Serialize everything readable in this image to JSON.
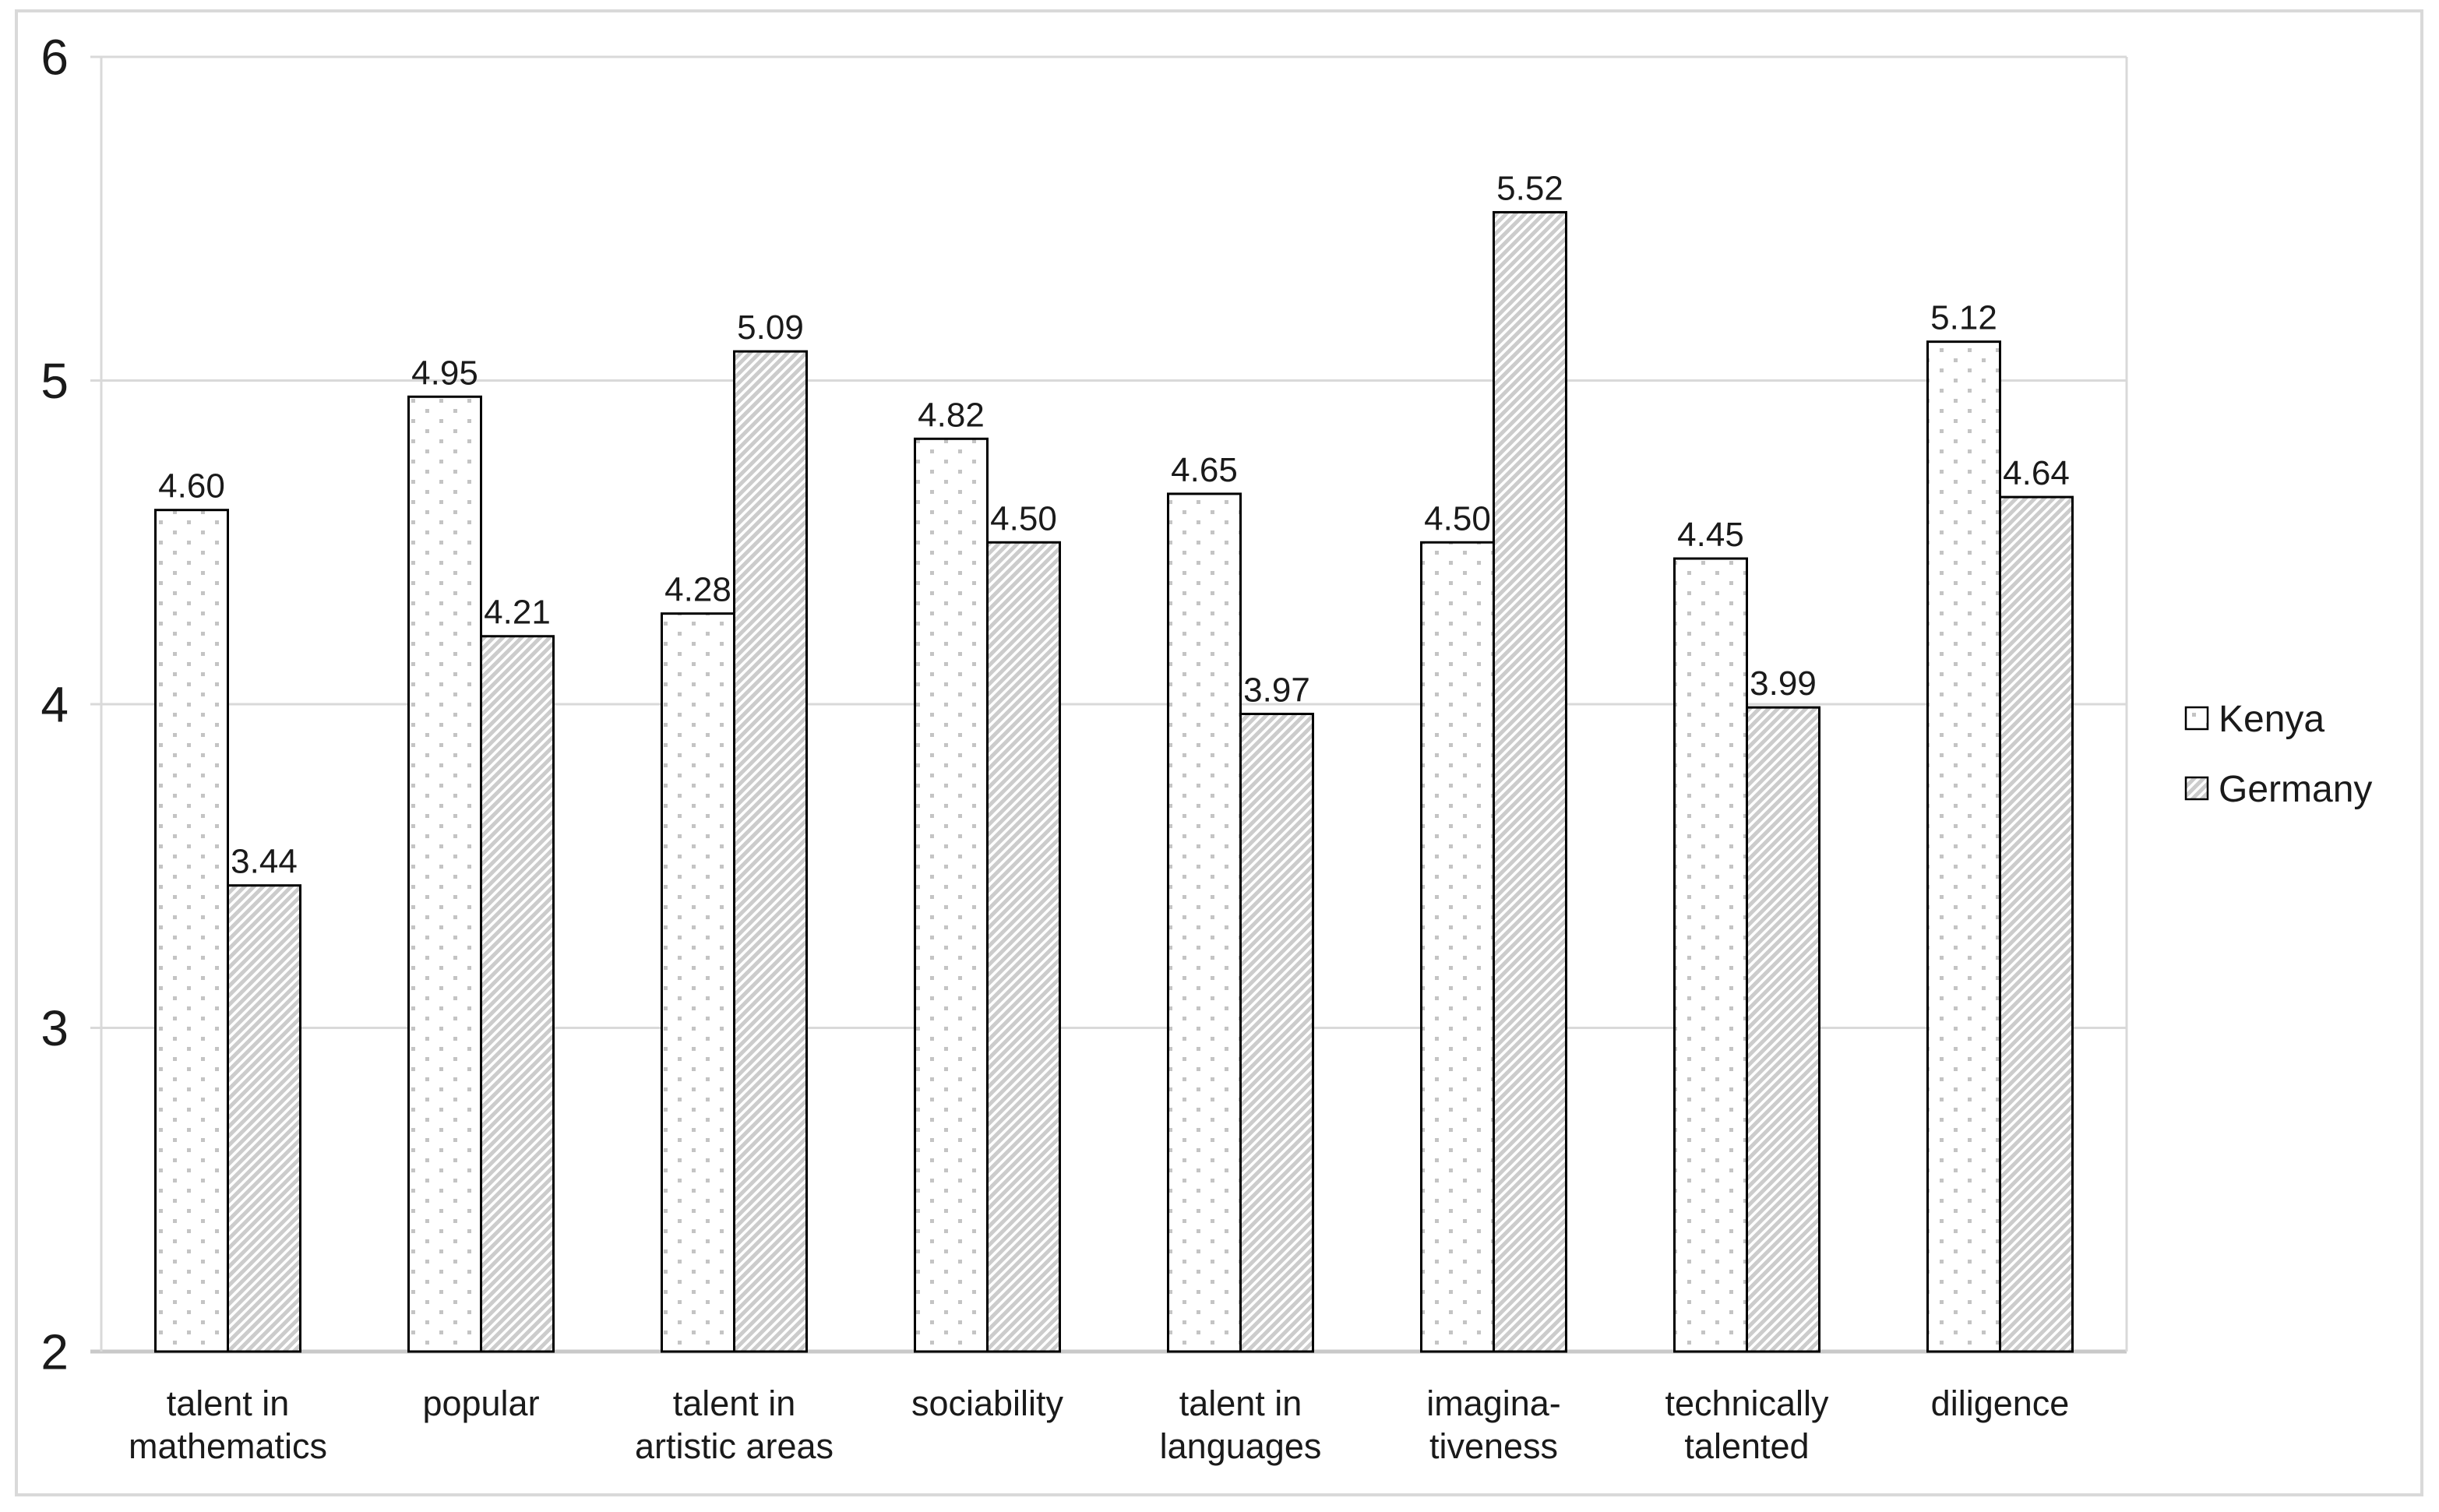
{
  "chart_data": {
    "type": "bar",
    "title": "",
    "categories": [
      "talent in\nmathematics",
      "popular",
      "talent in\nartistic areas",
      "sociability",
      "talent in\nlanguages",
      "imagina-\ntiveness",
      "technically\ntalented",
      "diligence"
    ],
    "series": [
      {
        "name": "Kenya",
        "pattern": "dots",
        "values": [
          4.6,
          4.95,
          4.28,
          4.82,
          4.65,
          4.5,
          4.45,
          5.12
        ]
      },
      {
        "name": "Germany",
        "pattern": "hatch",
        "values": [
          3.44,
          4.21,
          5.09,
          4.5,
          3.97,
          5.52,
          3.99,
          4.64
        ]
      }
    ],
    "value_label_decimals": 2,
    "y_axis": {
      "min": 2,
      "max": 6,
      "step": 1,
      "tick_labels": [
        "2",
        "3",
        "4",
        "5",
        "6"
      ]
    },
    "legend": {
      "position": "right",
      "entries": [
        "Kenya",
        "Germany"
      ]
    },
    "grid": true,
    "colors": {
      "background": "#ffffff",
      "frame": "#d9d9d9",
      "gridline": "#d9d9d9",
      "axis_line": "#c9c9c9",
      "bar_outline": "#000000",
      "dot_pattern": "#c4c4c4",
      "hatch_pattern": "#cccccc",
      "text": "#1a1a1a"
    }
  }
}
